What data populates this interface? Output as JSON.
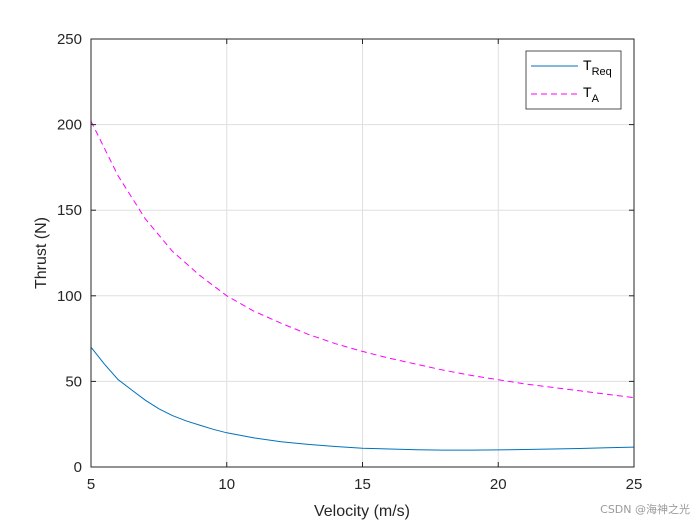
{
  "chart_data": {
    "type": "line",
    "title": "",
    "xlabel": "Velocity (m/s)",
    "ylabel": "Thrust (N)",
    "xlim": [
      5,
      25
    ],
    "ylim": [
      0,
      250
    ],
    "xticks": [
      5,
      10,
      15,
      20,
      25
    ],
    "yticks": [
      0,
      50,
      100,
      150,
      200,
      250
    ],
    "grid": true,
    "legend_position": "top-right",
    "series": [
      {
        "name": "T_Req",
        "legend_main": "T",
        "legend_sub": "Req",
        "color": "#0072BD",
        "style": "solid",
        "x": [
          5,
          5.5,
          6,
          6.5,
          7,
          7.5,
          8,
          8.5,
          9,
          9.5,
          10,
          11,
          12,
          13,
          14,
          15,
          16,
          17,
          18,
          19,
          20,
          21,
          22,
          23,
          24,
          25
        ],
        "y": [
          70,
          60,
          51,
          45,
          39,
          34,
          30,
          27,
          24.5,
          22,
          20,
          17,
          14.8,
          13.2,
          12,
          11,
          10.5,
          10.1,
          9.9,
          9.9,
          10,
          10.2,
          10.5,
          10.8,
          11.2,
          11.6
        ]
      },
      {
        "name": "T_A",
        "legend_main": "T",
        "legend_sub": "A",
        "color": "#FF00FF",
        "style": "dashed",
        "x": [
          5,
          6,
          7,
          8,
          9,
          10,
          11,
          12,
          13,
          14,
          15,
          16,
          17,
          18,
          19,
          20,
          21,
          22,
          23,
          24,
          25
        ],
        "y": [
          202,
          170,
          145,
          126,
          112,
          100,
          91,
          84,
          77.5,
          72,
          67.5,
          63.5,
          60,
          56.5,
          53.5,
          51,
          48.5,
          46.5,
          44.5,
          42.5,
          40.5
        ]
      }
    ]
  },
  "watermark": "CSDN @海神之光"
}
